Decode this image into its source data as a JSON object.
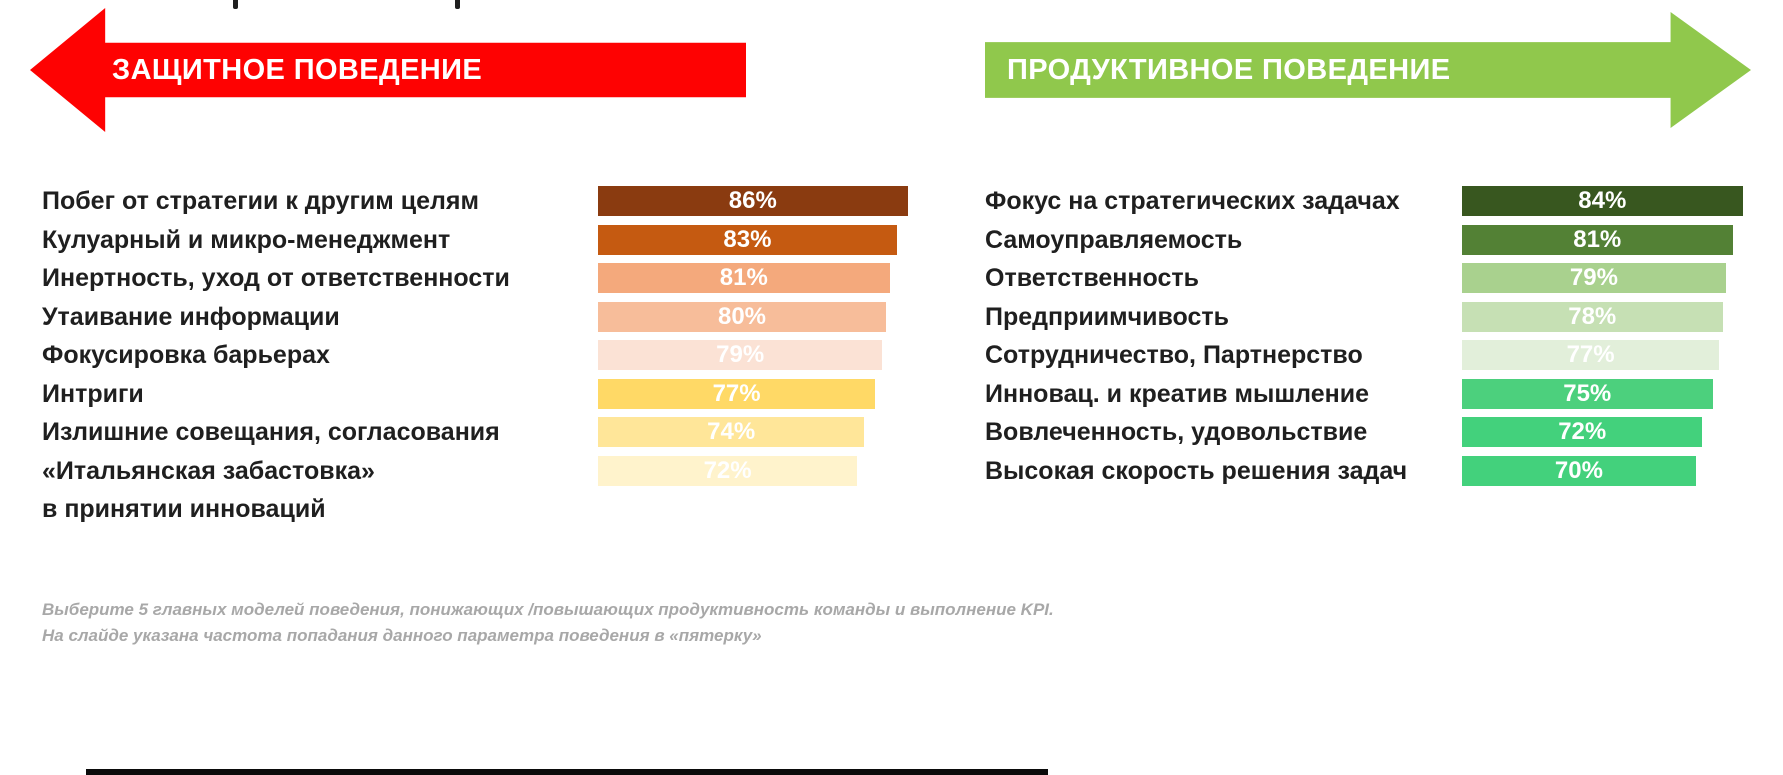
{
  "chart_data": [
    {
      "type": "bar",
      "orientation": "horizontal",
      "title": "ЗАЩИТНОЕ ПОВЕДЕНИЕ",
      "accent_color": "#FE0202",
      "categories": [
        "Побег от стратегии к  другим целям",
        "Кулуарный и микро-менеджмент",
        "Инертность, уход от  ответственности",
        "Утаивание информации",
        "Фокусировка барьерах",
        "Интриги",
        "Излишние совещания, согласования",
        "«Итальянская забастовка»"
      ],
      "extra_category": "в принятии инноваций",
      "values": [
        86,
        83,
        81,
        80,
        79,
        77,
        74,
        72
      ],
      "value_suffix": "%",
      "bar_colors": [
        "#8A3B10",
        "#C55A11",
        "#F4A97C",
        "#F7BD9A",
        "#FBE2D5",
        "#FFD966",
        "#FFE699",
        "#FFF3CC"
      ],
      "xlim": [
        0,
        100
      ],
      "grid": false,
      "legend": "none"
    },
    {
      "type": "bar",
      "orientation": "horizontal",
      "title": "ПРОДУКТИВНОЕ ПОВЕДЕНИЕ",
      "accent_color": "#90C84C",
      "categories": [
        "Фокус на стратегических задачах",
        "Самоуправляемость",
        "Ответственность",
        "Предприимчивость",
        "Сотрудничество, Партнерство",
        "Инновац. и креатив мышление",
        "Вовлеченность, удовольствие",
        "Высокая скорость решения задач"
      ],
      "values": [
        84,
        81,
        79,
        78,
        77,
        75,
        72,
        70
      ],
      "value_suffix": "%",
      "bar_colors": [
        "#38571F",
        "#538135",
        "#A9D18E",
        "#C6E0B4",
        "#E2EFDA",
        "#4CD07D",
        "#43D17C",
        "#43D17C"
      ],
      "xlim": [
        0,
        100
      ],
      "grid": false,
      "legend": "none"
    }
  ],
  "footer": {
    "line1": "Выберите 5 главных моделей поведения, понижающих /повышающих продуктивность команды и выполнение KPI.",
    "line2": "На слайде указана частота попадания данного параметра  поведения в «пятерку»"
  }
}
